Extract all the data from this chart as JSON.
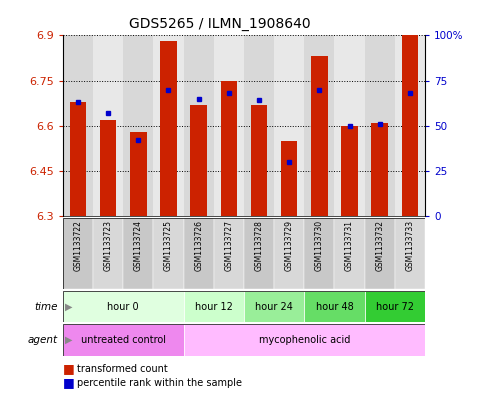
{
  "title": "GDS5265 / ILMN_1908640",
  "samples": [
    "GSM1133722",
    "GSM1133723",
    "GSM1133724",
    "GSM1133725",
    "GSM1133726",
    "GSM1133727",
    "GSM1133728",
    "GSM1133729",
    "GSM1133730",
    "GSM1133731",
    "GSM1133732",
    "GSM1133733"
  ],
  "transformed_counts": [
    6.68,
    6.62,
    6.58,
    6.88,
    6.67,
    6.75,
    6.67,
    6.55,
    6.83,
    6.6,
    6.61,
    6.9
  ],
  "percentile_ranks": [
    63,
    57,
    42,
    70,
    65,
    68,
    64,
    30,
    70,
    50,
    51,
    68
  ],
  "ymin": 6.3,
  "ymax": 6.9,
  "yticks": [
    6.3,
    6.45,
    6.6,
    6.75,
    6.9
  ],
  "bar_color": "#cc2200",
  "dot_color": "#0000cc",
  "time_groups": [
    {
      "label": "hour 0",
      "start": 0,
      "end": 4,
      "color": "#e0ffe0"
    },
    {
      "label": "hour 12",
      "start": 4,
      "end": 6,
      "color": "#ccffcc"
    },
    {
      "label": "hour 24",
      "start": 6,
      "end": 8,
      "color": "#99ee99"
    },
    {
      "label": "hour 48",
      "start": 8,
      "end": 10,
      "color": "#66dd66"
    },
    {
      "label": "hour 72",
      "start": 10,
      "end": 12,
      "color": "#33cc33"
    }
  ],
  "agent_groups": [
    {
      "label": "untreated control",
      "start": 0,
      "end": 4,
      "color": "#ee88ee"
    },
    {
      "label": "mycophenolic acid",
      "start": 4,
      "end": 12,
      "color": "#ffbbff"
    }
  ],
  "bar_width": 0.55,
  "base_value": 6.3,
  "right_yticks": [
    0,
    25,
    50,
    75,
    100
  ],
  "right_yticklabels": [
    "0",
    "25",
    "50",
    "75",
    "100%"
  ]
}
